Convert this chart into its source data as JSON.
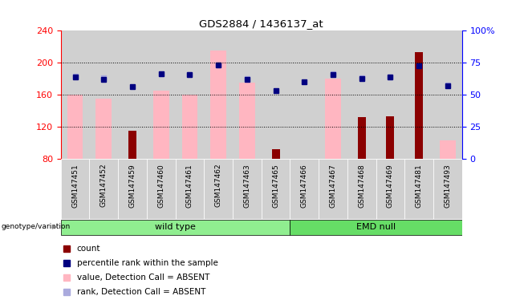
{
  "title": "GDS2884 / 1436137_at",
  "samples": [
    "GSM147451",
    "GSM147452",
    "GSM147459",
    "GSM147460",
    "GSM147461",
    "GSM147462",
    "GSM147463",
    "GSM147465",
    "GSM147466",
    "GSM147467",
    "GSM147468",
    "GSM147469",
    "GSM147481",
    "GSM147493"
  ],
  "wt_count": 8,
  "emd_count": 6,
  "pink_bar_values": [
    160,
    155,
    80,
    165,
    160,
    215,
    175,
    80,
    80,
    180,
    80,
    80,
    80,
    103
  ],
  "red_bar_values": [
    80,
    80,
    115,
    80,
    80,
    80,
    80,
    92,
    80,
    80,
    132,
    133,
    213,
    80
  ],
  "blue_sq_values": [
    182,
    179,
    170,
    186,
    185,
    197,
    179,
    165,
    176,
    185,
    180,
    182,
    196,
    171
  ],
  "lightblue_sq_values": [
    183,
    181,
    80,
    186,
    185,
    197,
    180,
    80,
    80,
    186,
    181,
    182,
    80,
    172
  ],
  "ymin": 80,
  "ymax": 240,
  "yticks_left": [
    80,
    120,
    160,
    200,
    240
  ],
  "yticks_right_labels": [
    "0",
    "25",
    "50",
    "75",
    "100%"
  ],
  "yticks_right_values": [
    80,
    120,
    160,
    200,
    240
  ],
  "pink_color": "#FFB6C1",
  "red_color": "#8B0000",
  "blue_color": "#000080",
  "lightblue_color": "#AAAADD",
  "green_light": "#90EE90",
  "green_bright": "#66DD66",
  "gray_col": "#D0D0D0",
  "legend_items": [
    {
      "color": "#8B0000",
      "label": "count"
    },
    {
      "color": "#000080",
      "label": "percentile rank within the sample"
    },
    {
      "color": "#FFB6C1",
      "label": "value, Detection Call = ABSENT"
    },
    {
      "color": "#AAAADD",
      "label": "rank, Detection Call = ABSENT"
    }
  ]
}
